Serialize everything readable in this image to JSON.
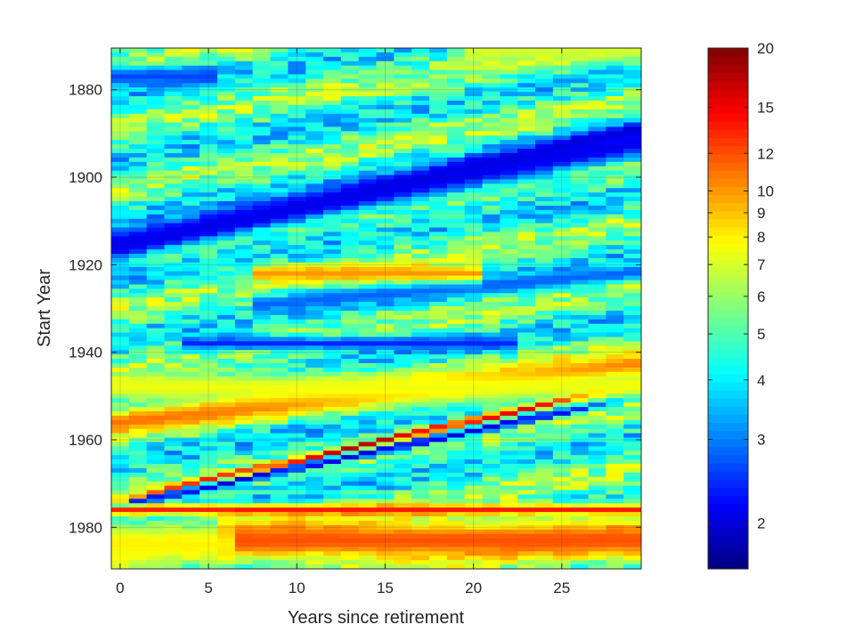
{
  "chart_data": {
    "type": "heatmap",
    "title": "",
    "xlabel": "Years since retirement",
    "ylabel": "Start Year",
    "x": {
      "min": 0,
      "max": 29,
      "step": 1,
      "ticks": [
        0,
        5,
        10,
        15,
        20,
        25
      ],
      "tick_labels": [
        "0",
        "5",
        "10",
        "15",
        "20",
        "25"
      ]
    },
    "y": {
      "min": 1871,
      "max": 1989,
      "step": 1,
      "reversed": true,
      "ticks": [
        1880,
        1900,
        1920,
        1940,
        1960,
        1980
      ],
      "tick_labels": [
        "1880",
        "1900",
        "1920",
        "1940",
        "1960",
        "1980"
      ]
    },
    "xlim": [
      -0.5,
      29.5
    ],
    "ylim": [
      1870.5,
      1989.5
    ],
    "grid": true,
    "colorbar": {
      "scale": "log",
      "colormap": "jet",
      "range": [
        1.6,
        20
      ],
      "ticks": [
        2,
        3,
        4,
        5,
        6,
        7,
        8,
        9,
        10,
        12,
        15,
        20
      ],
      "tick_labels": [
        "2",
        "3",
        "4",
        "5",
        "6",
        "7",
        "8",
        "9",
        "10",
        "12",
        "15",
        "20"
      ]
    },
    "value_model": {
      "note_free": true,
      "base": 4.8,
      "bands": [
        {
          "value": 1.9,
          "start_year": 1916,
          "slope": -0.92,
          "width": 2.2
        },
        {
          "value": 2.1,
          "start_year": 1915,
          "slope": -0.78,
          "width": 3.5
        },
        {
          "value": 2.6,
          "start_year": 1877,
          "slope": 0,
          "width": 2.5,
          "x_to": 5
        },
        {
          "value": 2.4,
          "start_year": 1938,
          "slope": 0,
          "width": 1.6,
          "x_from": 4,
          "x_to": 22
        },
        {
          "value": 2.8,
          "start_year": 1932,
          "slope": -0.35,
          "width": 2.0,
          "x_from": 8
        },
        {
          "value": 18,
          "start_year": 1974,
          "slope": -0.92,
          "width": 0.8
        },
        {
          "value": 2.0,
          "start_year": 1975,
          "slope": -0.85,
          "width": 1.0
        },
        {
          "value": 11,
          "start_year": 1956,
          "slope": -0.45,
          "width": 3.0
        },
        {
          "value": 10,
          "start_year": 1922,
          "slope": 0,
          "width": 2.0,
          "x_from": 8,
          "x_to": 20
        },
        {
          "value": 14,
          "start_year": 1976,
          "slope": 0,
          "width": 1.2
        },
        {
          "value": 12,
          "start_year": 1983,
          "slope": 0,
          "width": 5.0,
          "x_from": 6
        },
        {
          "value": 7.5,
          "start_year": 1948,
          "slope": 0,
          "width": 3.5
        },
        {
          "value": 7.0,
          "start_year": 1871,
          "slope": 0,
          "width": 3.0,
          "x_from": 20
        },
        {
          "value": 8.0,
          "start_year": 1984,
          "slope": 0,
          "width": 5.0,
          "x_to": 6
        }
      ]
    }
  }
}
